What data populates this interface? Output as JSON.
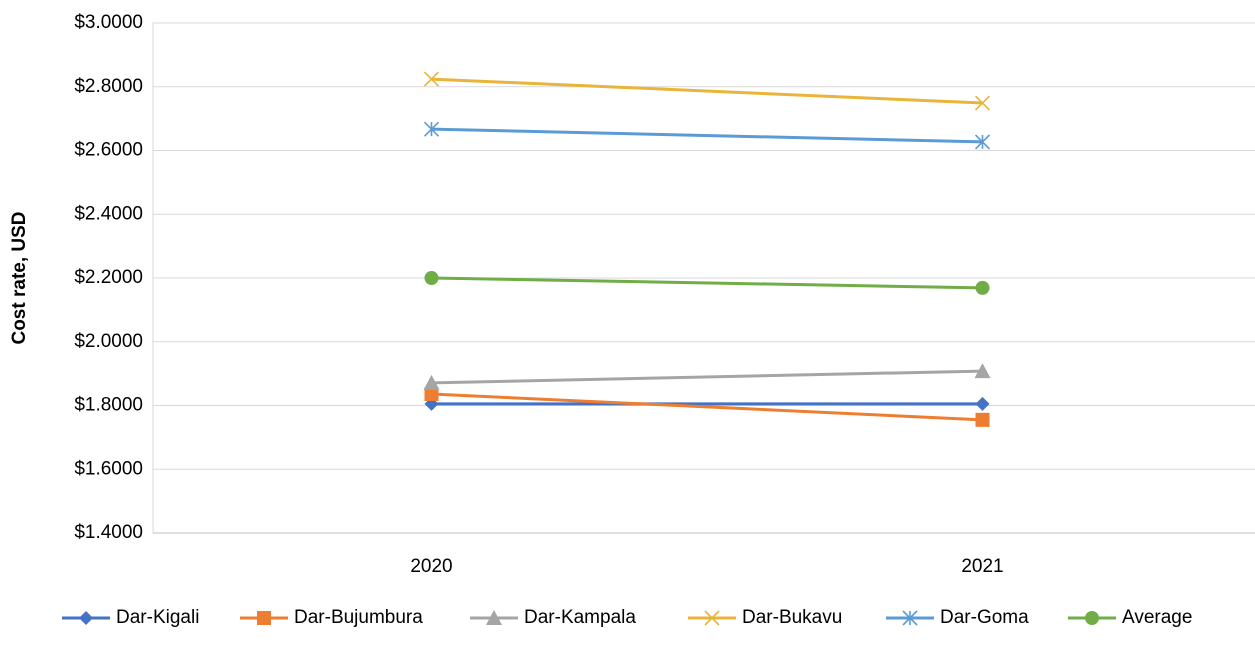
{
  "chart_data": {
    "type": "line",
    "y_label": "Cost rate, USD",
    "categories": [
      "2020",
      "2021"
    ],
    "series": [
      {
        "name": "Dar-Kigali",
        "color": "#4472c4",
        "marker": "diamond",
        "values": [
          1.805,
          1.805
        ]
      },
      {
        "name": "Dar-Bujumbura",
        "color": "#ed7d31",
        "marker": "square",
        "values": [
          1.836,
          1.755
        ]
      },
      {
        "name": "Dar-Kampala",
        "color": "#a5a5a5",
        "marker": "triangle",
        "values": [
          1.871,
          1.908
        ]
      },
      {
        "name": "Dar-Bukavu",
        "color": "#e8b43a",
        "marker": "x",
        "values": [
          2.824,
          2.749
        ]
      },
      {
        "name": "Dar-Goma",
        "color": "#5b9bd5",
        "marker": "star",
        "values": [
          2.667,
          2.627
        ]
      },
      {
        "name": "Average",
        "color": "#70ad47",
        "marker": "circle",
        "values": [
          2.2,
          2.169
        ]
      }
    ],
    "ylim": [
      1.4,
      3.0
    ],
    "yticks": [
      {
        "value": 1.4,
        "label": "$1.4000"
      },
      {
        "value": 1.6,
        "label": "$1.6000"
      },
      {
        "value": 1.8,
        "label": "$1.8000"
      },
      {
        "value": 2.0,
        "label": "$2.0000"
      },
      {
        "value": 2.2,
        "label": "$2.2000"
      },
      {
        "value": 2.4,
        "label": "$2.4000"
      },
      {
        "value": 2.6,
        "label": "$2.6000"
      },
      {
        "value": 2.8,
        "label": "$2.8000"
      },
      {
        "value": 3.0,
        "label": "$3.0000"
      }
    ],
    "grid": true,
    "legend": "bottom"
  }
}
